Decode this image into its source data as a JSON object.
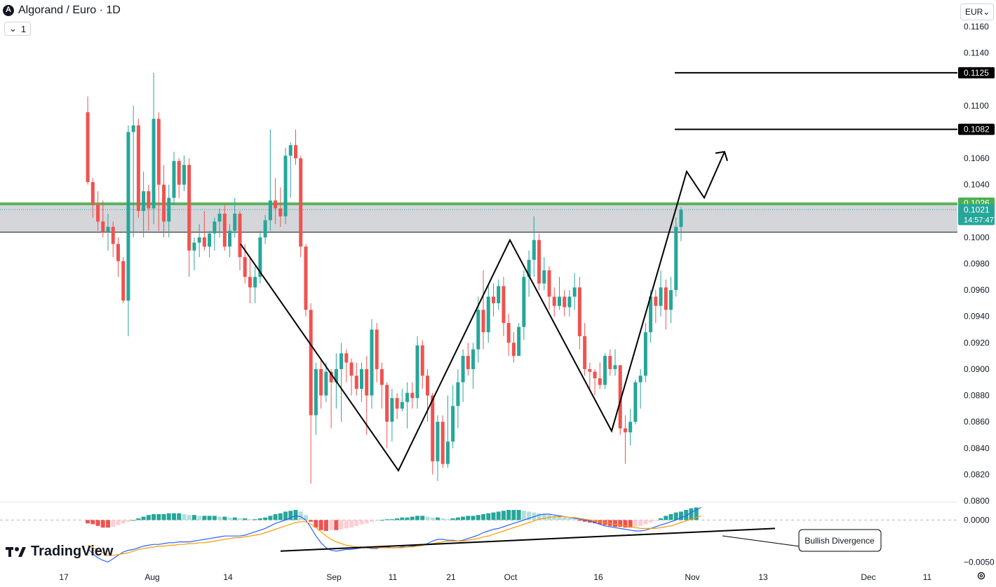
{
  "header": {
    "symbol_title": "Algorand / Euro · 1D",
    "interval": "1",
    "currency": "EUR",
    "brand": "TradingView",
    "logo_icon": "algorand-logo-icon",
    "chevron_icon": "chevron-down-icon",
    "settings_icon": "gear-icon"
  },
  "colors": {
    "up": "#26a69a",
    "down": "#ef5350",
    "zone_fill": "#d5d6da",
    "zone_top": "#4caf50",
    "macd_line": "#2962ff",
    "signal_line": "#ff9800"
  },
  "chart_data": [
    {
      "type": "candlestick",
      "x_ticks": [
        "17",
        "Aug",
        "14",
        "Sep",
        "11",
        "21",
        "Oct",
        "16",
        "Nov",
        "13",
        "Dec",
        "11"
      ],
      "y_ticks": [
        "0.0800",
        "0.0820",
        "0.0840",
        "0.0860",
        "0.0880",
        "0.0900",
        "0.0920",
        "0.0940",
        "0.0960",
        "0.0980",
        "0.1000",
        "0.1040",
        "0.1060",
        "0.1100",
        "0.1140",
        "0.1160"
      ],
      "ylim": [
        0.08,
        0.117
      ],
      "price_labels": [
        {
          "value": 0.1125,
          "text": "0.1125",
          "style": "black"
        },
        {
          "value": 0.1082,
          "text": "0.1082",
          "style": "black"
        },
        {
          "value": 0.1026,
          "text": "0.1026",
          "style": "green"
        },
        {
          "value": 0.1021,
          "text": "0.1021",
          "countdown": "14:57:47",
          "style": "teal"
        }
      ],
      "horizontal_lines": [
        {
          "value": 0.1125,
          "from_date": "Oct 28",
          "extends_right": true
        },
        {
          "value": 0.1082,
          "from_date": "Oct 28",
          "extends_right": true
        }
      ],
      "resistance_zone": {
        "top": 0.1026,
        "bottom": 0.1004
      },
      "ohlc": [
        [
          0.1095,
          0.1107,
          0.104,
          0.1042
        ],
        [
          0.1042,
          0.1045,
          0.1015,
          0.1025
        ],
        [
          0.1025,
          0.1035,
          0.1005,
          0.1012
        ],
        [
          0.1012,
          0.1028,
          0.1,
          0.1004
        ],
        [
          0.1004,
          0.1018,
          0.099,
          0.1008
        ],
        [
          0.1008,
          0.1012,
          0.0985,
          0.0995
        ],
        [
          0.0995,
          0.1,
          0.097,
          0.0982
        ],
        [
          0.0982,
          0.0985,
          0.095,
          0.0952
        ],
        [
          0.0952,
          0.1085,
          0.0925,
          0.108
        ],
        [
          0.108,
          0.11,
          0.1,
          0.1085
        ],
        [
          0.1085,
          0.109,
          0.1015,
          0.102
        ],
        [
          0.102,
          0.105,
          0.1,
          0.1035
        ],
        [
          0.1035,
          0.104,
          0.1005,
          0.1022
        ],
        [
          0.1022,
          0.1125,
          0.101,
          0.109
        ],
        [
          0.109,
          0.1095,
          0.1005,
          0.104
        ],
        [
          0.104,
          0.1055,
          0.1,
          0.1012
        ],
        [
          0.1012,
          0.104,
          0.1,
          0.103
        ],
        [
          0.103,
          0.1065,
          0.1025,
          0.1058
        ],
        [
          0.1058,
          0.106,
          0.103,
          0.104
        ],
        [
          0.104,
          0.1062,
          0.1035,
          0.1055
        ],
        [
          0.1055,
          0.106,
          0.097,
          0.099
        ],
        [
          0.099,
          0.1,
          0.0975,
          0.0996
        ],
        [
          0.0996,
          0.101,
          0.0985,
          0.1
        ],
        [
          0.1,
          0.102,
          0.099,
          0.0993
        ],
        [
          0.0993,
          0.1005,
          0.0985,
          0.1003
        ],
        [
          0.1003,
          0.1015,
          0.099,
          0.1012
        ],
        [
          0.1012,
          0.1022,
          0.1,
          0.1018
        ],
        [
          0.1018,
          0.1025,
          0.099,
          0.0993
        ],
        [
          0.0993,
          0.101,
          0.0985,
          0.1005
        ],
        [
          0.1005,
          0.103,
          0.1,
          0.1018
        ],
        [
          0.1018,
          0.102,
          0.0975,
          0.0985
        ],
        [
          0.0985,
          0.0995,
          0.0965,
          0.097
        ],
        [
          0.097,
          0.0985,
          0.095,
          0.0962
        ],
        [
          0.0962,
          0.0978,
          0.095,
          0.097
        ],
        [
          0.097,
          0.1005,
          0.0965,
          0.1
        ],
        [
          0.1,
          0.1017,
          0.0995,
          0.1013
        ],
        [
          0.1013,
          0.1082,
          0.1005,
          0.1028
        ],
        [
          0.1028,
          0.1045,
          0.101,
          0.1022
        ],
        [
          0.1022,
          0.1038,
          0.1008,
          0.1016
        ],
        [
          0.1016,
          0.1068,
          0.101,
          0.1062
        ],
        [
          0.1062,
          0.1072,
          0.103,
          0.107
        ],
        [
          0.107,
          0.1082,
          0.1055,
          0.106
        ],
        [
          0.106,
          0.1062,
          0.0985,
          0.0993
        ],
        [
          0.0993,
          0.0995,
          0.094,
          0.0945
        ],
        [
          0.0945,
          0.095,
          0.0813,
          0.0865
        ],
        [
          0.0865,
          0.0905,
          0.085,
          0.09
        ],
        [
          0.09,
          0.0908,
          0.087,
          0.088
        ],
        [
          0.088,
          0.0905,
          0.0875,
          0.0898
        ],
        [
          0.0898,
          0.09,
          0.0855,
          0.089
        ],
        [
          0.089,
          0.0912,
          0.087,
          0.09
        ],
        [
          0.09,
          0.092,
          0.086,
          0.0912
        ],
        [
          0.0912,
          0.0915,
          0.089,
          0.0905
        ],
        [
          0.0905,
          0.0908,
          0.088,
          0.0895
        ],
        [
          0.0895,
          0.0905,
          0.088,
          0.0885
        ],
        [
          0.0885,
          0.0905,
          0.0875,
          0.09
        ],
        [
          0.09,
          0.091,
          0.085,
          0.088
        ],
        [
          0.088,
          0.0938,
          0.087,
          0.093
        ],
        [
          0.093,
          0.0935,
          0.089,
          0.09
        ],
        [
          0.09,
          0.0905,
          0.087,
          0.0888
        ],
        [
          0.0888,
          0.089,
          0.084,
          0.086
        ],
        [
          0.086,
          0.0885,
          0.0845,
          0.0878
        ],
        [
          0.0878,
          0.0882,
          0.0862,
          0.087
        ],
        [
          0.087,
          0.0885,
          0.0868,
          0.0875
        ],
        [
          0.0875,
          0.089,
          0.0855,
          0.0882
        ],
        [
          0.0882,
          0.089,
          0.087,
          0.0878
        ],
        [
          0.0878,
          0.0925,
          0.087,
          0.0918
        ],
        [
          0.0918,
          0.0922,
          0.0885,
          0.0895
        ],
        [
          0.0895,
          0.09,
          0.086,
          0.088
        ],
        [
          0.088,
          0.0882,
          0.082,
          0.083
        ],
        [
          0.083,
          0.0865,
          0.0815,
          0.086
        ],
        [
          0.086,
          0.0865,
          0.0825,
          0.0828
        ],
        [
          0.0828,
          0.088,
          0.0825,
          0.0845
        ],
        [
          0.0845,
          0.0888,
          0.084,
          0.0872
        ],
        [
          0.0872,
          0.09,
          0.0855,
          0.089
        ],
        [
          0.089,
          0.0915,
          0.0875,
          0.091
        ],
        [
          0.091,
          0.092,
          0.0895,
          0.09
        ],
        [
          0.09,
          0.092,
          0.0885,
          0.0915
        ],
        [
          0.0915,
          0.0955,
          0.0905,
          0.0945
        ],
        [
          0.0945,
          0.0975,
          0.0915,
          0.0928
        ],
        [
          0.0928,
          0.0965,
          0.092,
          0.0955
        ],
        [
          0.0955,
          0.0965,
          0.094,
          0.095
        ],
        [
          0.095,
          0.0968,
          0.0945,
          0.0963
        ],
        [
          0.0963,
          0.097,
          0.0925,
          0.0935
        ],
        [
          0.0935,
          0.0942,
          0.091,
          0.092
        ],
        [
          0.092,
          0.0928,
          0.0905,
          0.091
        ],
        [
          0.091,
          0.0935,
          0.091,
          0.0932
        ],
        [
          0.0932,
          0.0975,
          0.0922,
          0.097
        ],
        [
          0.097,
          0.099,
          0.0955,
          0.0983
        ],
        [
          0.0983,
          0.1016,
          0.097,
          0.0998
        ],
        [
          0.0998,
          0.1003,
          0.096,
          0.0965
        ],
        [
          0.0965,
          0.0985,
          0.096,
          0.0975
        ],
        [
          0.0975,
          0.0978,
          0.0945,
          0.0955
        ],
        [
          0.0955,
          0.0962,
          0.094,
          0.0948
        ],
        [
          0.0948,
          0.097,
          0.0945,
          0.0955
        ],
        [
          0.0955,
          0.096,
          0.094,
          0.0947
        ],
        [
          0.0947,
          0.096,
          0.094,
          0.0955
        ],
        [
          0.0955,
          0.0973,
          0.0945,
          0.0962
        ],
        [
          0.0962,
          0.097,
          0.0915,
          0.0925
        ],
        [
          0.0925,
          0.0935,
          0.0895,
          0.09
        ],
        [
          0.09,
          0.0905,
          0.0885,
          0.0898
        ],
        [
          0.0898,
          0.09,
          0.088,
          0.0893
        ],
        [
          0.0893,
          0.0905,
          0.0885,
          0.0888
        ],
        [
          0.0888,
          0.0912,
          0.0885,
          0.091
        ],
        [
          0.091,
          0.0915,
          0.0895,
          0.09
        ],
        [
          0.09,
          0.0915,
          0.0895,
          0.0903
        ],
        [
          0.0903,
          0.09,
          0.085,
          0.0855
        ],
        [
          0.0855,
          0.0865,
          0.0828,
          0.0852
        ],
        [
          0.0852,
          0.087,
          0.0842,
          0.086
        ],
        [
          0.086,
          0.0892,
          0.0858,
          0.089
        ],
        [
          0.089,
          0.09,
          0.087,
          0.0895
        ],
        [
          0.0895,
          0.0935,
          0.089,
          0.0928
        ],
        [
          0.0928,
          0.096,
          0.092,
          0.0955
        ],
        [
          0.0955,
          0.096,
          0.0935,
          0.0948
        ],
        [
          0.0948,
          0.0975,
          0.094,
          0.0962
        ],
        [
          0.0962,
          0.0968,
          0.093,
          0.0945
        ],
        [
          0.0945,
          0.097,
          0.0935,
          0.096
        ],
        [
          0.096,
          0.1015,
          0.0955,
          0.1008
        ],
        [
          0.1008,
          0.1023,
          0.0997,
          0.1021
        ]
      ],
      "drawings": [
        {
          "name": "zigzag-pattern",
          "points": [
            [
              "Jul 18",
              0.0995
            ],
            [
              "Sep 9",
              0.0823
            ],
            [
              "Oct 2",
              0.0998
            ],
            [
              "Oct 18",
              0.0853
            ],
            [
              "Oct 29",
              0.105
            ],
            [
              "Nov 1",
              0.103
            ],
            [
              "Nov 3",
              0.1065
            ]
          ]
        }
      ]
    },
    {
      "type": "macd",
      "y_ticks": [
        "0.0000",
        "−0.0050"
      ],
      "ylim": [
        -0.0053,
        0.0017
      ],
      "annotation": "Bullish Divergence",
      "divergence_line": [
        [
          "Aug 27",
          -0.0037
        ],
        [
          "Nov 12",
          -0.001
        ]
      ],
      "histogram": [
        -0.0004,
        -0.0005,
        -0.0007,
        -0.0009,
        -0.0009,
        -0.0008,
        -0.0006,
        -0.0004,
        -0.0002,
        0.0,
        0.0002,
        0.0004,
        0.0006,
        0.0007,
        0.0007,
        0.0007,
        0.0008,
        0.0008,
        0.0008,
        0.0007,
        0.0006,
        0.0006,
        0.0005,
        0.0005,
        0.0005,
        0.0005,
        0.0004,
        0.0004,
        0.0003,
        0.0003,
        0.0002,
        0.0002,
        0.0001,
        0.0001,
        0.0002,
        0.0003,
        0.0005,
        0.0007,
        0.0008,
        0.001,
        0.0011,
        0.0012,
        0.001,
        0.0006,
        -0.0002,
        -0.0009,
        -0.0012,
        -0.0013,
        -0.0012,
        -0.0012,
        -0.0011,
        -0.001,
        -0.0009,
        -0.0007,
        -0.0005,
        -0.0004,
        -0.0002,
        -0.0001,
        0.0,
        0.0001,
        0.0001,
        0.0002,
        0.0003,
        0.0003,
        0.0004,
        0.0005,
        0.0005,
        0.0004,
        0.0003,
        0.0003,
        0.0002,
        0.0001,
        0.0002,
        0.0003,
        0.0004,
        0.0005,
        0.0005,
        0.0006,
        0.0007,
        0.0008,
        0.0009,
        0.001,
        0.0011,
        0.0012,
        0.0012,
        0.0012,
        0.0011,
        0.001,
        0.0009,
        0.0008,
        0.0007,
        0.0006,
        0.0005,
        0.0004,
        0.0003,
        0.0002,
        0.0001,
        -0.0001,
        -0.0002,
        -0.0003,
        -0.0004,
        -0.0005,
        -0.0006,
        -0.0007,
        -0.0008,
        -0.0008,
        -0.0009,
        -0.0009,
        -0.0008,
        -0.0007,
        -0.0005,
        -0.0003,
        -0.0001,
        0.0002,
        0.0005,
        0.0007,
        0.0009,
        0.001,
        0.0012,
        0.0014,
        0.0015
      ],
      "macd": [
        -0.0034,
        -0.004,
        -0.0045,
        -0.0048,
        -0.005,
        -0.0046,
        -0.0042,
        -0.0038,
        -0.0036,
        -0.0035,
        -0.0033,
        -0.0031,
        -0.003,
        -0.0029,
        -0.0029,
        -0.0028,
        -0.0027,
        -0.0027,
        -0.0026,
        -0.0026,
        -0.0026,
        -0.0025,
        -0.0024,
        -0.0023,
        -0.0022,
        -0.0021,
        -0.002,
        -0.0019,
        -0.0019,
        -0.0019,
        -0.0019,
        -0.0018,
        -0.0016,
        -0.0014,
        -0.0012,
        -0.001,
        -0.0007,
        -0.0004,
        -0.0002,
        0.0,
        0.0003,
        0.0005,
        0.0004,
        0.0,
        -0.0009,
        -0.0019,
        -0.0027,
        -0.0033,
        -0.0036,
        -0.0037,
        -0.0036,
        -0.0035,
        -0.0035,
        -0.0034,
        -0.0033,
        -0.0033,
        -0.0034,
        -0.0034,
        -0.0032,
        -0.0032,
        -0.0033,
        -0.0033,
        -0.0032,
        -0.0032,
        -0.0031,
        -0.0031,
        -0.003,
        -0.0028,
        -0.0025,
        -0.0023,
        -0.0023,
        -0.0024,
        -0.0024,
        -0.0025,
        -0.0024,
        -0.0022,
        -0.002,
        -0.0018,
        -0.0015,
        -0.0013,
        -0.0011,
        -0.001,
        -0.0008,
        -0.0006,
        -0.0004,
        -0.0002,
        0.0,
        0.0002,
        0.0004,
        0.0006,
        0.0007,
        0.0007,
        0.0006,
        0.0005,
        0.0004,
        0.0003,
        0.0002,
        0.0001,
        0.0,
        -0.0001,
        -0.0003,
        -0.0005,
        -0.0007,
        -0.0008,
        -0.0009,
        -0.001,
        -0.0011,
        -0.0012,
        -0.0013,
        -0.0013,
        -0.0012,
        -0.001,
        -0.0008,
        -0.0006,
        -0.0004,
        -0.0002,
        0.0,
        0.0003,
        0.0005,
        0.0009,
        0.0012,
        0.0015
      ],
      "signal": [
        -0.003,
        -0.0033,
        -0.0036,
        -0.0039,
        -0.0042,
        -0.0042,
        -0.0041,
        -0.004,
        -0.0039,
        -0.0037,
        -0.0035,
        -0.0034,
        -0.0033,
        -0.0032,
        -0.0031,
        -0.0031,
        -0.003,
        -0.003,
        -0.0029,
        -0.0029,
        -0.0028,
        -0.0028,
        -0.0027,
        -0.0027,
        -0.0026,
        -0.0025,
        -0.0024,
        -0.0023,
        -0.0022,
        -0.0021,
        -0.0021,
        -0.002,
        -0.0019,
        -0.0018,
        -0.0017,
        -0.0015,
        -0.0013,
        -0.0011,
        -0.0009,
        -0.0007,
        -0.0005,
        -0.0003,
        -0.0002,
        -0.0002,
        -0.0005,
        -0.0009,
        -0.0014,
        -0.0019,
        -0.0023,
        -0.0026,
        -0.0028,
        -0.003,
        -0.0031,
        -0.0032,
        -0.0032,
        -0.0033,
        -0.0033,
        -0.0033,
        -0.0033,
        -0.0033,
        -0.0033,
        -0.0033,
        -0.0033,
        -0.0032,
        -0.0032,
        -0.0031,
        -0.003,
        -0.0029,
        -0.0028,
        -0.0027,
        -0.0026,
        -0.0025,
        -0.0025,
        -0.0025,
        -0.0025,
        -0.0024,
        -0.0023,
        -0.0022,
        -0.002,
        -0.0019,
        -0.0017,
        -0.0015,
        -0.0013,
        -0.0011,
        -0.0009,
        -0.0007,
        -0.0005,
        -0.0003,
        -0.0001,
        0.0001,
        0.0002,
        0.0003,
        0.0004,
        0.0004,
        0.0004,
        0.0003,
        0.0003,
        0.0002,
        0.0001,
        0.0,
        -0.0001,
        -0.0002,
        -0.0003,
        -0.0004,
        -0.0005,
        -0.0006,
        -0.0007,
        -0.0008,
        -0.0009,
        -0.001,
        -0.001,
        -0.001,
        -0.001,
        -0.0009,
        -0.0008,
        -0.0007,
        -0.0005,
        -0.0003,
        -0.0001,
        0.0001,
        0.0003,
        0.0005
      ]
    }
  ]
}
